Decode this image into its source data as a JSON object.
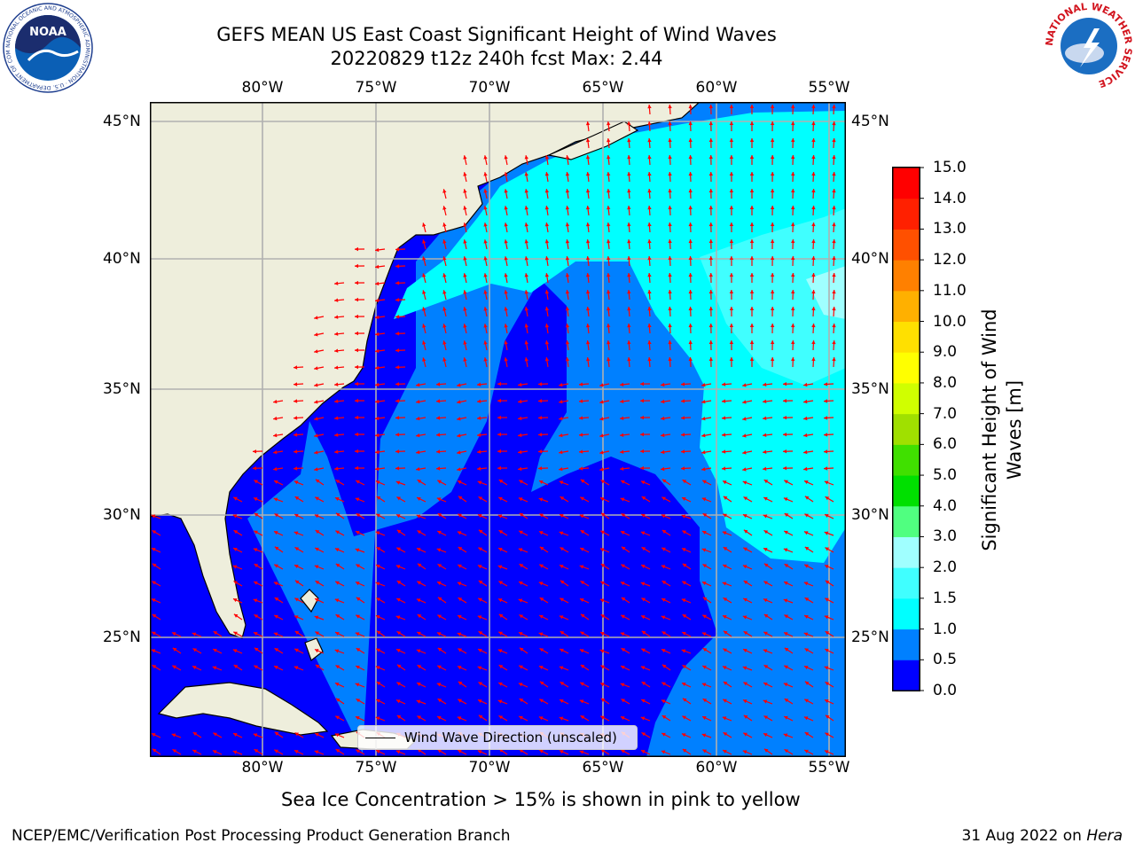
{
  "title": {
    "line1": "GEFS MEAN US East Coast Significant Height of Wind Waves",
    "line2": "20220829 t12z 240h fcst   Max: 2.44"
  },
  "logos": {
    "noaa": {
      "text": "NOAA",
      "ring_text": "NATIONAL OCEANIC AND ATMOSPHERIC ADMINISTRATION · U.S. DEPARTMENT OF COMMERCE"
    },
    "nws": {
      "ring_text": "NATIONAL WEATHER SERVICE"
    }
  },
  "map": {
    "lon_ticks": [
      "80°W",
      "75°W",
      "70°W",
      "65°W",
      "60°W",
      "55°W"
    ],
    "lat_ticks_left": [
      "45°N",
      "40°N",
      "35°N",
      "30°N",
      "25°N"
    ],
    "lat_ticks_right": [
      "45°N",
      "40°N",
      "35°N",
      "30°N",
      "25°N"
    ],
    "lon_range": [
      -85,
      -54.3
    ],
    "lat_range": [
      20.5,
      45.8
    ],
    "land_color": "#eeeedc",
    "grid_color": "#b0b0b0",
    "arrow_color": "#ff0000",
    "legend": "Wind Wave Direction (unscaled)"
  },
  "colorbar": {
    "title": "Significant Height of Wind Waves [m]",
    "title_line1": "Significant Height of Wind",
    "title_line2": "Waves [m]",
    "levels": [
      "0.0",
      "0.5",
      "1.0",
      "1.5",
      "2.0",
      "3.0",
      "4.0",
      "5.0",
      "6.0",
      "7.0",
      "8.0",
      "9.0",
      "10.0",
      "11.0",
      "12.0",
      "13.0",
      "14.0",
      "15.0"
    ],
    "colors": [
      "#0000ff",
      "#0080ff",
      "#00ffff",
      "#40ffff",
      "#a0ffff",
      "#50ff80",
      "#00e000",
      "#40e000",
      "#a0e000",
      "#d0ff00",
      "#ffff00",
      "#ffe000",
      "#ffb000",
      "#ff8000",
      "#ff5000",
      "#ff2000",
      "#ff0000"
    ]
  },
  "sea_ice_note": "Sea Ice Concentration > 15% is shown in pink to yellow",
  "footer": {
    "left": "NCEP/EMC/Verification Post Processing Product Generation Branch",
    "right_date": "31 Aug 2022 on ",
    "right_machine": "Hera"
  }
}
